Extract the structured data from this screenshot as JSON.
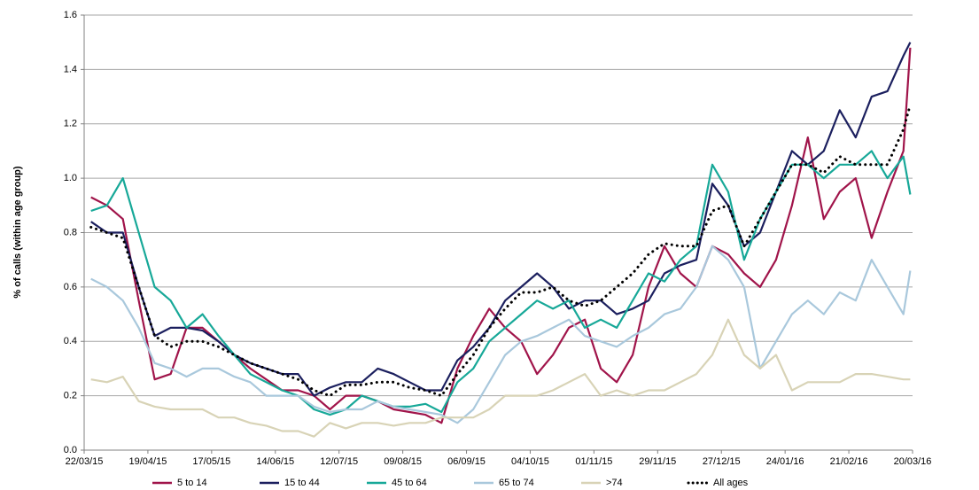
{
  "chart_data": {
    "type": "line",
    "y_label": "% of calls (within age group)",
    "x": [
      "25/03/15",
      "01/04/15",
      "08/04/15",
      "15/04/15",
      "22/04/15",
      "29/04/15",
      "06/05/15",
      "13/05/15",
      "20/05/15",
      "27/05/15",
      "03/06/15",
      "10/06/15",
      "17/06/15",
      "24/06/15",
      "01/07/15",
      "08/07/15",
      "15/07/15",
      "22/07/15",
      "29/07/15",
      "05/08/15",
      "12/08/15",
      "19/08/15",
      "26/08/15",
      "02/09/15",
      "09/09/15",
      "16/09/15",
      "23/09/15",
      "30/09/15",
      "07/10/15",
      "14/10/15",
      "21/10/15",
      "28/10/15",
      "04/11/15",
      "11/11/15",
      "18/11/15",
      "25/11/15",
      "02/12/15",
      "09/12/15",
      "16/12/15",
      "23/12/15",
      "30/12/15",
      "06/01/16",
      "13/01/16",
      "20/01/16",
      "27/01/16",
      "03/02/16",
      "10/02/16",
      "17/02/16",
      "24/02/16",
      "02/03/16",
      "09/03/16",
      "16/03/16",
      "19/03/16"
    ],
    "xlim": [
      "22/03/15",
      "20/03/16"
    ],
    "xticks": [
      "22/03/15",
      "19/04/15",
      "17/05/15",
      "14/06/15",
      "12/07/15",
      "09/08/15",
      "06/09/15",
      "04/10/15",
      "01/11/15",
      "29/11/15",
      "27/12/15",
      "24/01/16",
      "21/02/16",
      "20/03/16"
    ],
    "ylim": [
      0,
      1.6
    ],
    "yticks": [
      {
        "value": 0,
        "label": "0.0"
      },
      0.2,
      0.4,
      0.6,
      0.8,
      {
        "value": 1,
        "label": "1.0"
      },
      1.2,
      1.4,
      1.6
    ],
    "grid": true,
    "legend": "bottom",
    "series": [
      {
        "name": "5 to 14",
        "color": "#a0144a",
        "style": "solid",
        "values": [
          0.93,
          0.9,
          0.85,
          0.55,
          0.26,
          0.28,
          0.45,
          0.45,
          0.4,
          0.35,
          0.3,
          0.26,
          0.22,
          0.22,
          0.2,
          0.15,
          0.2,
          0.2,
          0.18,
          0.15,
          0.14,
          0.13,
          0.1,
          0.3,
          0.42,
          0.52,
          0.45,
          0.4,
          0.28,
          0.35,
          0.45,
          0.48,
          0.3,
          0.25,
          0.35,
          0.6,
          0.75,
          0.65,
          0.6,
          0.75,
          0.72,
          0.65,
          0.6,
          0.7,
          0.9,
          1.15,
          0.85,
          0.95,
          1.0,
          0.78,
          0.95,
          1.1,
          1.48
        ]
      },
      {
        "name": "15 to 44",
        "color": "#1b1f5e",
        "style": "solid",
        "values": [
          0.84,
          0.8,
          0.8,
          0.6,
          0.42,
          0.45,
          0.45,
          0.44,
          0.4,
          0.35,
          0.32,
          0.3,
          0.28,
          0.28,
          0.2,
          0.23,
          0.25,
          0.25,
          0.3,
          0.28,
          0.25,
          0.22,
          0.22,
          0.33,
          0.38,
          0.45,
          0.55,
          0.6,
          0.65,
          0.6,
          0.52,
          0.55,
          0.55,
          0.5,
          0.52,
          0.55,
          0.65,
          0.68,
          0.7,
          0.98,
          0.9,
          0.75,
          0.8,
          0.95,
          1.1,
          1.05,
          1.1,
          1.25,
          1.15,
          1.3,
          1.32,
          1.45,
          1.5
        ]
      },
      {
        "name": "45 to 64",
        "color": "#17a898",
        "style": "solid",
        "values": [
          0.88,
          0.9,
          1.0,
          0.8,
          0.6,
          0.55,
          0.45,
          0.5,
          0.42,
          0.35,
          0.28,
          0.25,
          0.22,
          0.2,
          0.15,
          0.13,
          0.15,
          0.2,
          0.18,
          0.16,
          0.16,
          0.17,
          0.14,
          0.25,
          0.3,
          0.4,
          0.45,
          0.5,
          0.55,
          0.52,
          0.55,
          0.45,
          0.48,
          0.45,
          0.55,
          0.65,
          0.62,
          0.7,
          0.75,
          1.05,
          0.95,
          0.7,
          0.85,
          0.95,
          1.05,
          1.05,
          1.0,
          1.05,
          1.05,
          1.1,
          1.0,
          1.08,
          0.94
        ]
      },
      {
        "name": "65 to 74",
        "color": "#a9c8dc",
        "style": "solid",
        "values": [
          0.63,
          0.6,
          0.55,
          0.45,
          0.32,
          0.3,
          0.27,
          0.3,
          0.3,
          0.27,
          0.25,
          0.2,
          0.2,
          0.2,
          0.16,
          0.14,
          0.15,
          0.15,
          0.18,
          0.16,
          0.15,
          0.14,
          0.13,
          0.1,
          0.15,
          0.25,
          0.35,
          0.4,
          0.42,
          0.45,
          0.48,
          0.42,
          0.4,
          0.38,
          0.42,
          0.45,
          0.5,
          0.52,
          0.6,
          0.75,
          0.7,
          0.6,
          0.3,
          0.4,
          0.5,
          0.55,
          0.5,
          0.58,
          0.55,
          0.7,
          0.6,
          0.5,
          0.66
        ]
      },
      {
        "name": ">74",
        "color": "#d8d3b6",
        "style": "solid",
        "values": [
          0.26,
          0.25,
          0.27,
          0.18,
          0.16,
          0.15,
          0.15,
          0.15,
          0.12,
          0.12,
          0.1,
          0.09,
          0.07,
          0.07,
          0.05,
          0.1,
          0.08,
          0.1,
          0.1,
          0.09,
          0.1,
          0.1,
          0.12,
          0.12,
          0.12,
          0.15,
          0.2,
          0.2,
          0.2,
          0.22,
          0.25,
          0.28,
          0.2,
          0.22,
          0.2,
          0.22,
          0.22,
          0.25,
          0.28,
          0.35,
          0.48,
          0.35,
          0.3,
          0.35,
          0.22,
          0.25,
          0.25,
          0.25,
          0.28,
          0.28,
          0.27,
          0.26,
          0.26
        ]
      },
      {
        "name": "All ages",
        "color": "#000000",
        "style": "dotted",
        "values": [
          0.82,
          0.8,
          0.78,
          0.6,
          0.42,
          0.38,
          0.4,
          0.4,
          0.38,
          0.35,
          0.32,
          0.3,
          0.28,
          0.26,
          0.22,
          0.2,
          0.24,
          0.24,
          0.25,
          0.25,
          0.23,
          0.22,
          0.2,
          0.28,
          0.35,
          0.45,
          0.52,
          0.58,
          0.58,
          0.6,
          0.55,
          0.53,
          0.55,
          0.6,
          0.65,
          0.72,
          0.76,
          0.75,
          0.75,
          0.88,
          0.9,
          0.75,
          0.85,
          0.95,
          1.05,
          1.05,
          1.02,
          1.08,
          1.05,
          1.05,
          1.05,
          1.18,
          1.27
        ]
      }
    ]
  }
}
